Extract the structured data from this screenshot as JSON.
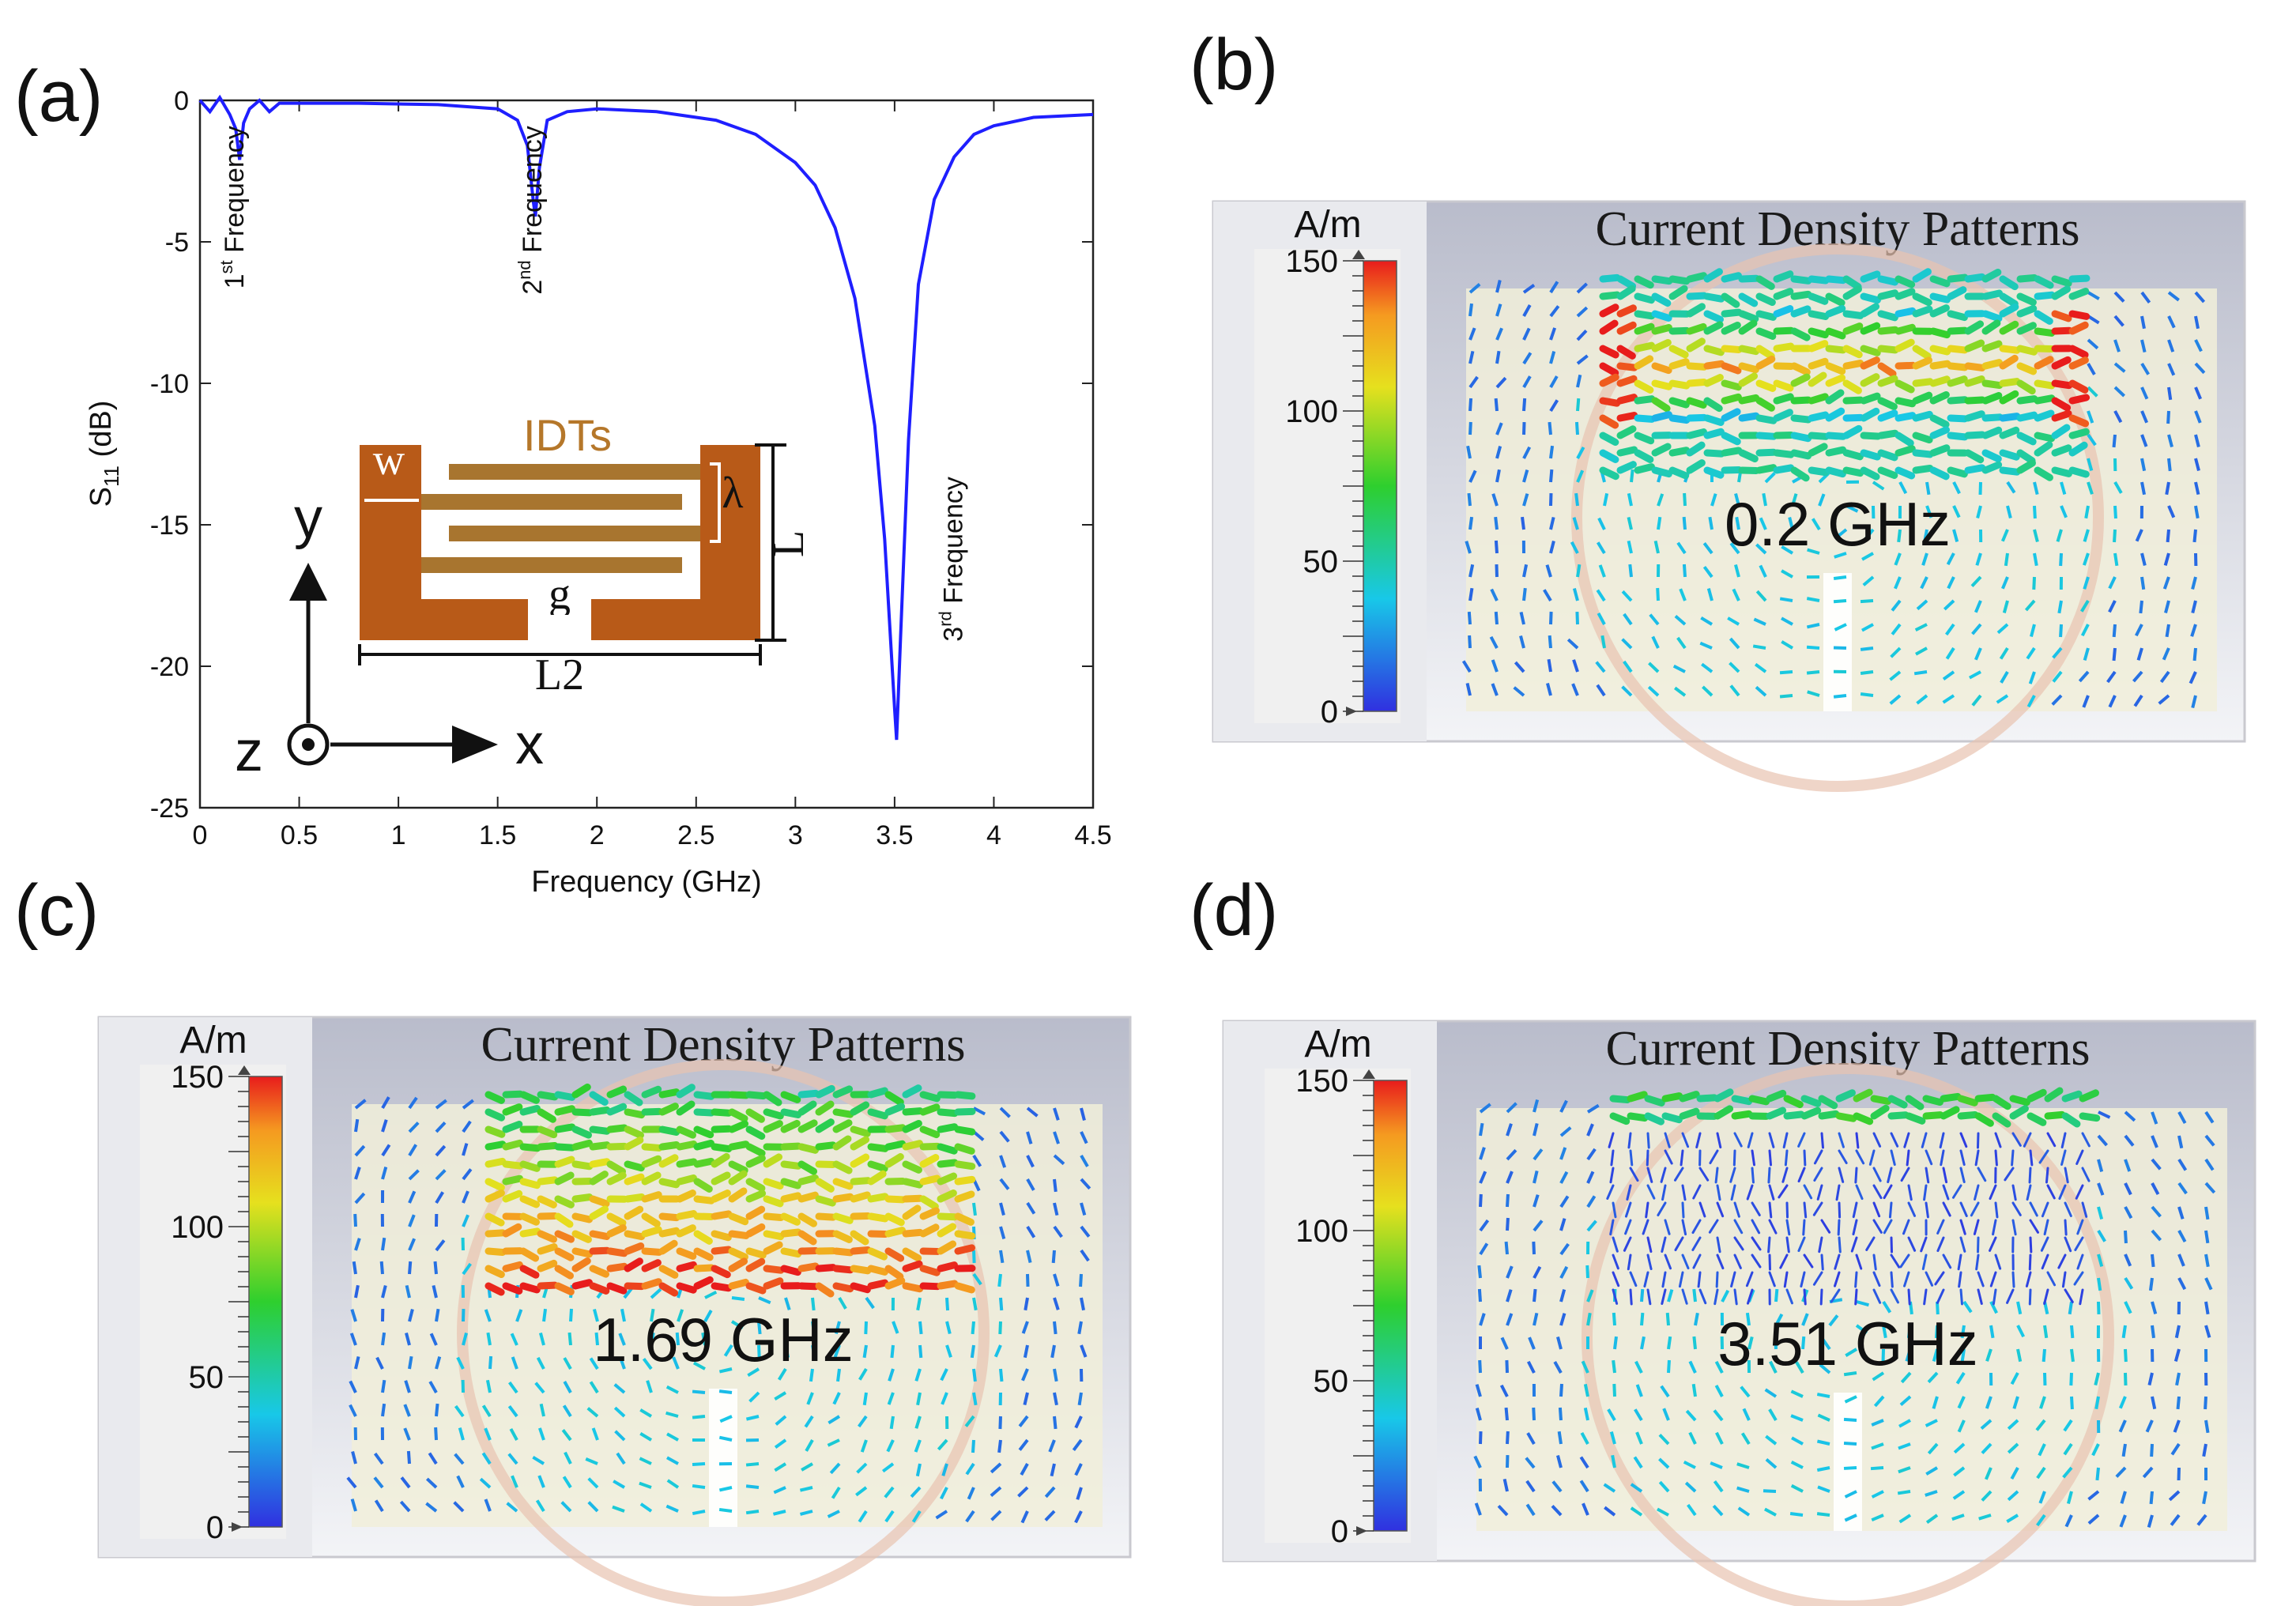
{
  "panel_labels": {
    "a": "(a)",
    "b": "(b)",
    "c": "(c)",
    "d": "(d)"
  },
  "chart_data": [
    {
      "type": "line",
      "panel": "(a)",
      "xlabel": "Frequency (GHz)",
      "ylabel_main": "S",
      "ylabel_sub": "11",
      "ylabel_unit": " (dB)",
      "xlim": [
        0,
        4.5
      ],
      "ylim": [
        -25,
        0
      ],
      "xticks": [
        "0",
        "0.5",
        "1",
        "1.5",
        "2",
        "2.5",
        "3",
        "3.5",
        "4",
        "4.5"
      ],
      "yticks": [
        "0",
        "-5",
        "-10",
        "-15",
        "-20",
        "-25"
      ],
      "series": [
        {
          "name": "S11",
          "color": "#1f1fff",
          "x": [
            0,
            0.05,
            0.1,
            0.15,
            0.18,
            0.2,
            0.22,
            0.25,
            0.3,
            0.35,
            0.4,
            0.5,
            0.8,
            1.2,
            1.5,
            1.6,
            1.65,
            1.68,
            1.69,
            1.71,
            1.75,
            1.85,
            2.0,
            2.3,
            2.6,
            2.8,
            3.0,
            3.1,
            3.2,
            3.3,
            3.4,
            3.45,
            3.5,
            3.51,
            3.53,
            3.57,
            3.62,
            3.7,
            3.8,
            3.9,
            4.0,
            4.2,
            4.5
          ],
          "y": [
            0,
            -0.4,
            0.1,
            -0.5,
            -1.0,
            -2.1,
            -0.8,
            -0.3,
            0,
            -0.4,
            -0.1,
            -0.1,
            -0.1,
            -0.15,
            -0.3,
            -0.7,
            -1.6,
            -3.6,
            -4.1,
            -2.4,
            -0.7,
            -0.4,
            -0.3,
            -0.4,
            -0.7,
            -1.2,
            -2.2,
            -3.0,
            -4.5,
            -7.0,
            -11.5,
            -15.5,
            -21.5,
            -22.6,
            -19.0,
            -12.0,
            -6.5,
            -3.5,
            -2.0,
            -1.2,
            -0.9,
            -0.6,
            -0.5
          ]
        }
      ],
      "annotations": [
        {
          "base": "1",
          "sup": "st",
          "text": " Frequency",
          "x": 0.22,
          "y": -0.9
        },
        {
          "base": "2",
          "sup": "nd",
          "text": " Frequency",
          "x": 1.72,
          "y": -0.9
        },
        {
          "base": "3",
          "sup": "rd",
          "text": " Frequency",
          "x": 3.84,
          "y": -13.3
        }
      ],
      "inset": {
        "title": "IDTs",
        "w": "w",
        "lambda": "λ",
        "L": "L",
        "g": "g",
        "L2": "L2",
        "axis_y": "y",
        "axis_x": "x",
        "axis_z": "z"
      }
    }
  ],
  "heatmaps": [
    {
      "panel": "(b)",
      "title": "Current Density Patterns",
      "unit": "A/m",
      "ticks": [
        "150",
        "100",
        "50",
        "0"
      ],
      "freq": "0.2 GHz"
    },
    {
      "panel": "(c)",
      "title": "Current Density Patterns",
      "unit": "A/m",
      "ticks": [
        "150",
        "100",
        "50",
        "0"
      ],
      "freq": "1.69 GHz"
    },
    {
      "panel": "(d)",
      "title": "Current Density Patterns",
      "unit": "A/m",
      "ticks": [
        "150",
        "100",
        "50",
        "0"
      ],
      "freq": "3.51 GHz"
    }
  ]
}
